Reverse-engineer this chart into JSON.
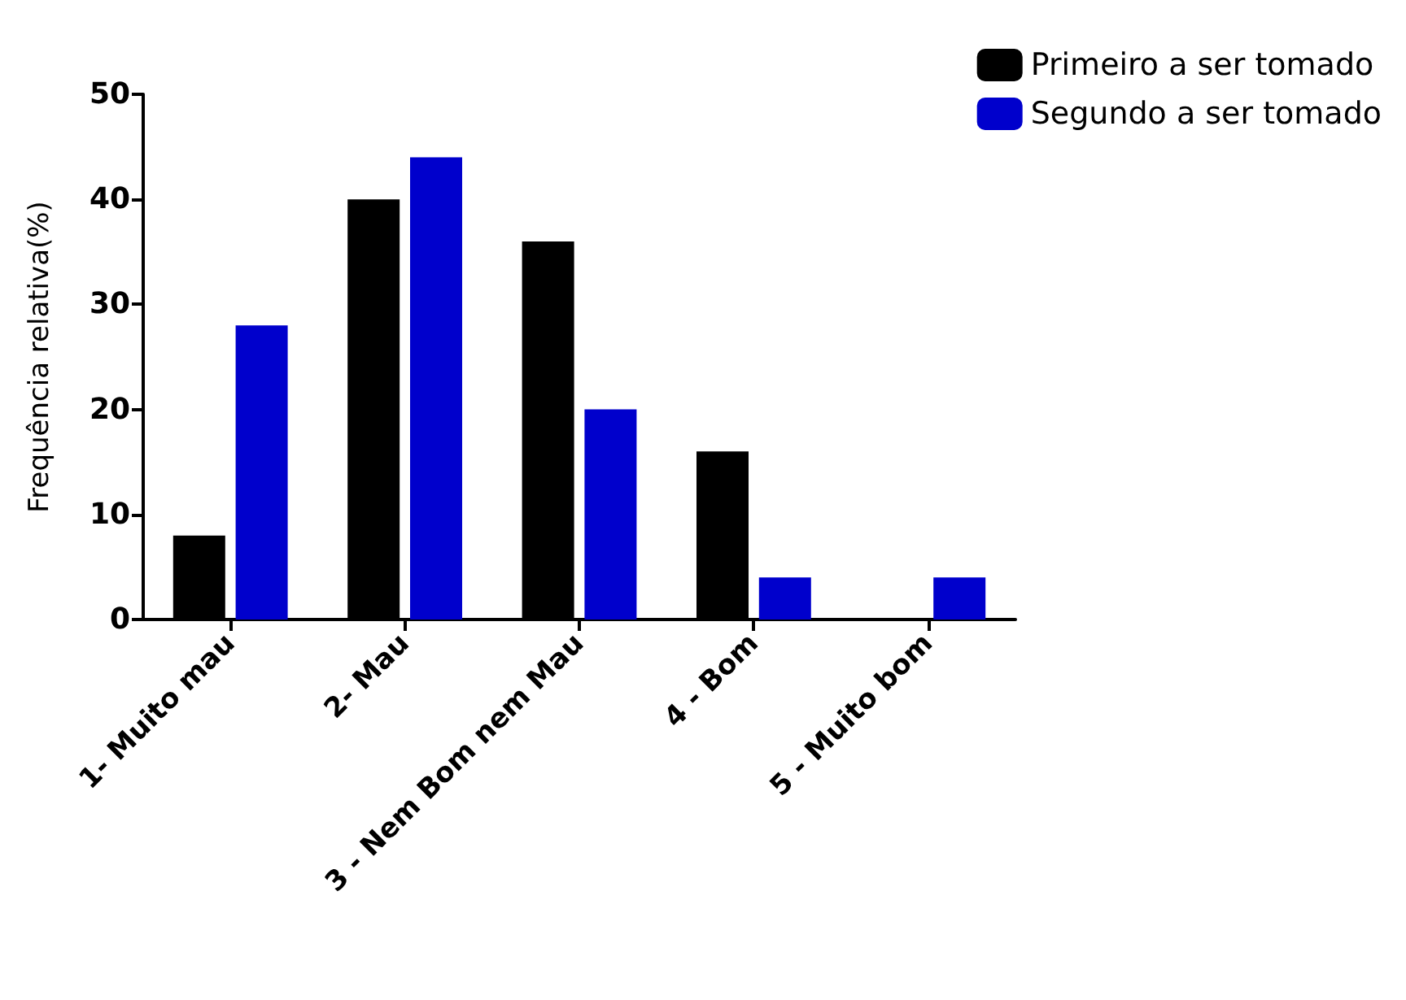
{
  "chart_data": {
    "type": "bar",
    "ylabel": "Frequência relativa(%)",
    "categories": [
      "1- Muito mau",
      "2- Mau",
      "3 - Nem Bom nem Mau",
      "4 - Bom",
      "5 - Muito bom"
    ],
    "series": [
      {
        "name": "Primeiro a ser tomado",
        "color": "#000000",
        "values": [
          8,
          40,
          36,
          16,
          0
        ]
      },
      {
        "name": "Segundo a ser tomado",
        "color": "#0000cc",
        "values": [
          28,
          44,
          20,
          4,
          4
        ]
      }
    ],
    "ylim": [
      0,
      50
    ],
    "yticks": [
      0,
      10,
      20,
      30,
      40,
      50
    ],
    "grid": false,
    "legend": "top right"
  }
}
